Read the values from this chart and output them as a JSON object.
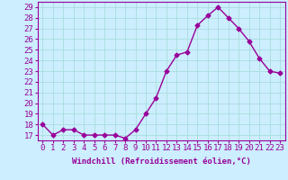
{
  "x": [
    0,
    1,
    2,
    3,
    4,
    5,
    6,
    7,
    8,
    9,
    10,
    11,
    12,
    13,
    14,
    15,
    16,
    17,
    18,
    19,
    20,
    21,
    22,
    23
  ],
  "y": [
    18,
    17,
    17.5,
    17.5,
    17,
    17,
    17,
    17,
    16.7,
    17.5,
    19,
    20.5,
    23,
    24.5,
    24.8,
    27.3,
    28.2,
    29,
    28,
    27,
    25.8,
    24.2,
    23,
    22.8
  ],
  "line_color": "#990099",
  "marker": "D",
  "marker_size": 2.5,
  "bg_color": "#cceeff",
  "grid_color": "#aadddd",
  "xlabel": "Windchill (Refroidissement éolien,°C)",
  "xlabel_fontsize": 6.5,
  "ylabel_ticks": [
    17,
    18,
    19,
    20,
    21,
    22,
    23,
    24,
    25,
    26,
    27,
    28,
    29
  ],
  "xlim": [
    -0.5,
    23.5
  ],
  "ylim": [
    16.5,
    29.5
  ],
  "xticks": [
    0,
    1,
    2,
    3,
    4,
    5,
    6,
    7,
    8,
    9,
    10,
    11,
    12,
    13,
    14,
    15,
    16,
    17,
    18,
    19,
    20,
    21,
    22,
    23
  ],
  "tick_fontsize": 6.5,
  "line_width": 1.0
}
